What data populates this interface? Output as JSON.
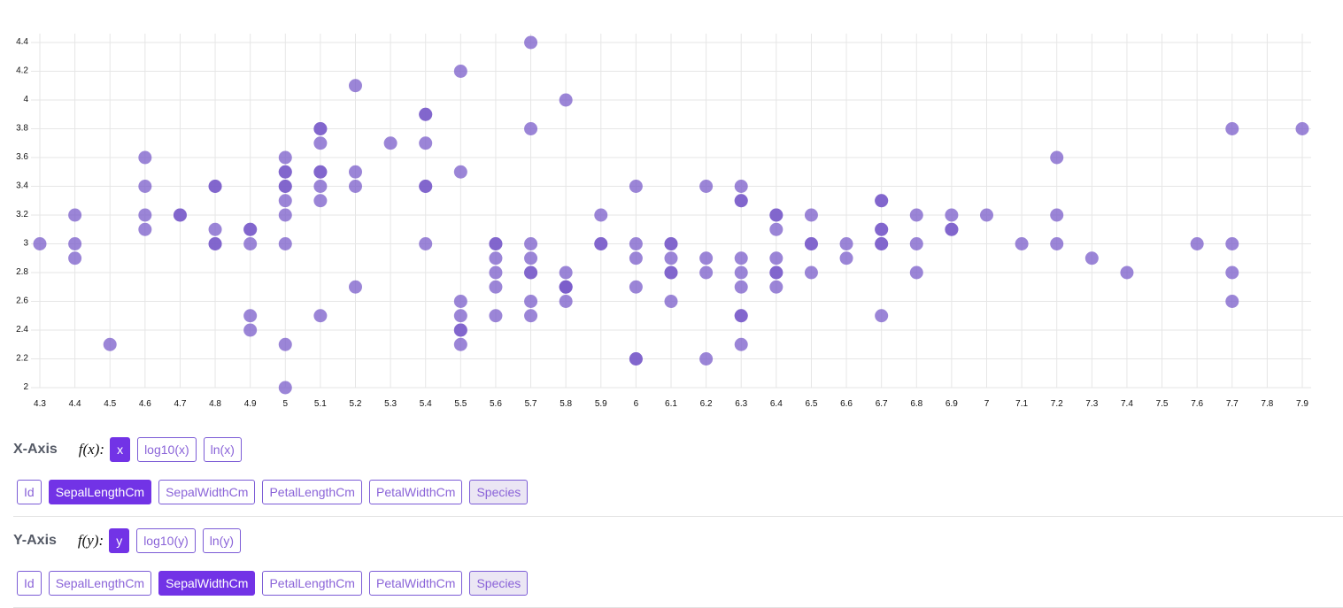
{
  "chart_data": {
    "type": "scatter",
    "title": "",
    "xlabel": "",
    "ylabel": "",
    "xlim": [
      4.3,
      7.9
    ],
    "ylim": [
      2.0,
      4.4
    ],
    "x_ticks": [
      4.3,
      4.4,
      4.5,
      4.6,
      4.7,
      4.8,
      4.9,
      5,
      5.1,
      5.2,
      5.3,
      5.4,
      5.5,
      5.6,
      5.7,
      5.8,
      5.9,
      6,
      6.1,
      6.2,
      6.3,
      6.4,
      6.5,
      6.6,
      6.7,
      6.8,
      6.9,
      7,
      7.1,
      7.2,
      7.3,
      7.4,
      7.5,
      7.6,
      7.7,
      7.8,
      7.9
    ],
    "y_ticks": [
      2,
      2.2,
      2.4,
      2.6,
      2.8,
      3,
      3.2,
      3.4,
      3.6,
      3.8,
      4,
      4.2,
      4.4
    ],
    "point_color": "#7a5cc9",
    "points": [
      [
        4.3,
        3.0
      ],
      [
        4.4,
        3.2
      ],
      [
        4.4,
        3.0
      ],
      [
        4.4,
        2.9
      ],
      [
        4.5,
        2.3
      ],
      [
        4.6,
        3.6
      ],
      [
        4.6,
        3.4
      ],
      [
        4.6,
        3.2
      ],
      [
        4.6,
        3.1
      ],
      [
        4.7,
        3.2
      ],
      [
        4.7,
        3.2
      ],
      [
        4.8,
        3.4
      ],
      [
        4.8,
        3.4
      ],
      [
        4.8,
        3.1
      ],
      [
        4.8,
        3.0
      ],
      [
        4.8,
        3.0
      ],
      [
        4.9,
        3.1
      ],
      [
        4.9,
        3.1
      ],
      [
        4.9,
        3.0
      ],
      [
        4.9,
        2.5
      ],
      [
        4.9,
        2.4
      ],
      [
        5.0,
        3.6
      ],
      [
        5.0,
        3.5
      ],
      [
        5.0,
        3.5
      ],
      [
        5.0,
        3.4
      ],
      [
        5.0,
        3.4
      ],
      [
        5.0,
        3.3
      ],
      [
        5.0,
        3.2
      ],
      [
        5.0,
        3.0
      ],
      [
        5.0,
        2.3
      ],
      [
        5.0,
        2.0
      ],
      [
        5.1,
        3.8
      ],
      [
        5.1,
        3.8
      ],
      [
        5.1,
        3.7
      ],
      [
        5.1,
        3.5
      ],
      [
        5.1,
        3.5
      ],
      [
        5.1,
        3.4
      ],
      [
        5.1,
        3.3
      ],
      [
        5.1,
        2.5
      ],
      [
        5.2,
        4.1
      ],
      [
        5.2,
        3.5
      ],
      [
        5.2,
        3.4
      ],
      [
        5.2,
        2.7
      ],
      [
        5.3,
        3.7
      ],
      [
        5.4,
        3.9
      ],
      [
        5.4,
        3.9
      ],
      [
        5.4,
        3.7
      ],
      [
        5.4,
        3.4
      ],
      [
        5.4,
        3.4
      ],
      [
        5.4,
        3.0
      ],
      [
        5.5,
        4.2
      ],
      [
        5.5,
        3.5
      ],
      [
        5.5,
        2.6
      ],
      [
        5.5,
        2.5
      ],
      [
        5.5,
        2.4
      ],
      [
        5.5,
        2.4
      ],
      [
        5.5,
        2.3
      ],
      [
        5.6,
        3.0
      ],
      [
        5.6,
        3.0
      ],
      [
        5.6,
        2.9
      ],
      [
        5.6,
        2.8
      ],
      [
        5.6,
        2.7
      ],
      [
        5.6,
        2.5
      ],
      [
        5.7,
        4.4
      ],
      [
        5.7,
        3.8
      ],
      [
        5.7,
        3.0
      ],
      [
        5.7,
        2.9
      ],
      [
        5.7,
        2.8
      ],
      [
        5.7,
        2.8
      ],
      [
        5.7,
        2.6
      ],
      [
        5.7,
        2.5
      ],
      [
        5.8,
        4.0
      ],
      [
        5.8,
        2.8
      ],
      [
        5.8,
        2.7
      ],
      [
        5.8,
        2.7
      ],
      [
        5.8,
        2.7
      ],
      [
        5.8,
        2.6
      ],
      [
        5.9,
        3.2
      ],
      [
        5.9,
        3.0
      ],
      [
        5.9,
        3.0
      ],
      [
        6.0,
        3.4
      ],
      [
        6.0,
        3.0
      ],
      [
        6.0,
        2.9
      ],
      [
        6.0,
        2.7
      ],
      [
        6.0,
        2.2
      ],
      [
        6.0,
        2.2
      ],
      [
        6.1,
        3.0
      ],
      [
        6.1,
        3.0
      ],
      [
        6.1,
        2.9
      ],
      [
        6.1,
        2.8
      ],
      [
        6.1,
        2.8
      ],
      [
        6.1,
        2.6
      ],
      [
        6.2,
        3.4
      ],
      [
        6.2,
        2.9
      ],
      [
        6.2,
        2.8
      ],
      [
        6.2,
        2.2
      ],
      [
        6.3,
        3.4
      ],
      [
        6.3,
        3.3
      ],
      [
        6.3,
        3.3
      ],
      [
        6.3,
        2.9
      ],
      [
        6.3,
        2.8
      ],
      [
        6.3,
        2.7
      ],
      [
        6.3,
        2.5
      ],
      [
        6.3,
        2.5
      ],
      [
        6.3,
        2.3
      ],
      [
        6.4,
        3.2
      ],
      [
        6.4,
        3.2
      ],
      [
        6.4,
        3.1
      ],
      [
        6.4,
        2.9
      ],
      [
        6.4,
        2.8
      ],
      [
        6.4,
        2.8
      ],
      [
        6.4,
        2.7
      ],
      [
        6.5,
        3.2
      ],
      [
        6.5,
        3.0
      ],
      [
        6.5,
        3.0
      ],
      [
        6.5,
        2.8
      ],
      [
        6.6,
        3.0
      ],
      [
        6.6,
        2.9
      ],
      [
        6.7,
        3.3
      ],
      [
        6.7,
        3.3
      ],
      [
        6.7,
        3.1
      ],
      [
        6.7,
        3.1
      ],
      [
        6.7,
        3.0
      ],
      [
        6.7,
        3.0
      ],
      [
        6.7,
        2.5
      ],
      [
        6.8,
        3.2
      ],
      [
        6.8,
        3.0
      ],
      [
        6.8,
        2.8
      ],
      [
        6.9,
        3.2
      ],
      [
        6.9,
        3.1
      ],
      [
        6.9,
        3.1
      ],
      [
        7.0,
        3.2
      ],
      [
        7.1,
        3.0
      ],
      [
        7.2,
        3.6
      ],
      [
        7.2,
        3.2
      ],
      [
        7.2,
        3.0
      ],
      [
        7.3,
        2.9
      ],
      [
        7.4,
        2.8
      ],
      [
        7.6,
        3.0
      ],
      [
        7.7,
        3.8
      ],
      [
        7.7,
        3.0
      ],
      [
        7.7,
        2.8
      ],
      [
        7.7,
        2.6
      ],
      [
        7.9,
        3.8
      ]
    ]
  },
  "x_axis": {
    "title": "X-Axis",
    "fn_label": "f(x):",
    "fn_buttons": [
      "x",
      "log10(x)",
      "ln(x)"
    ],
    "fn_active": 0,
    "columns": [
      "Id",
      "SepalLengthCm",
      "SepalWidthCm",
      "PetalLengthCm",
      "PetalWidthCm",
      "Species"
    ],
    "column_active": 1,
    "column_disabled": 5
  },
  "y_axis": {
    "title": "Y-Axis",
    "fn_label": "f(y):",
    "fn_buttons": [
      "y",
      "log10(y)",
      "ln(y)"
    ],
    "fn_active": 0,
    "columns": [
      "Id",
      "SepalLengthCm",
      "SepalWidthCm",
      "PetalLengthCm",
      "PetalWidthCm",
      "Species"
    ],
    "column_active": 2,
    "column_disabled": 5
  }
}
